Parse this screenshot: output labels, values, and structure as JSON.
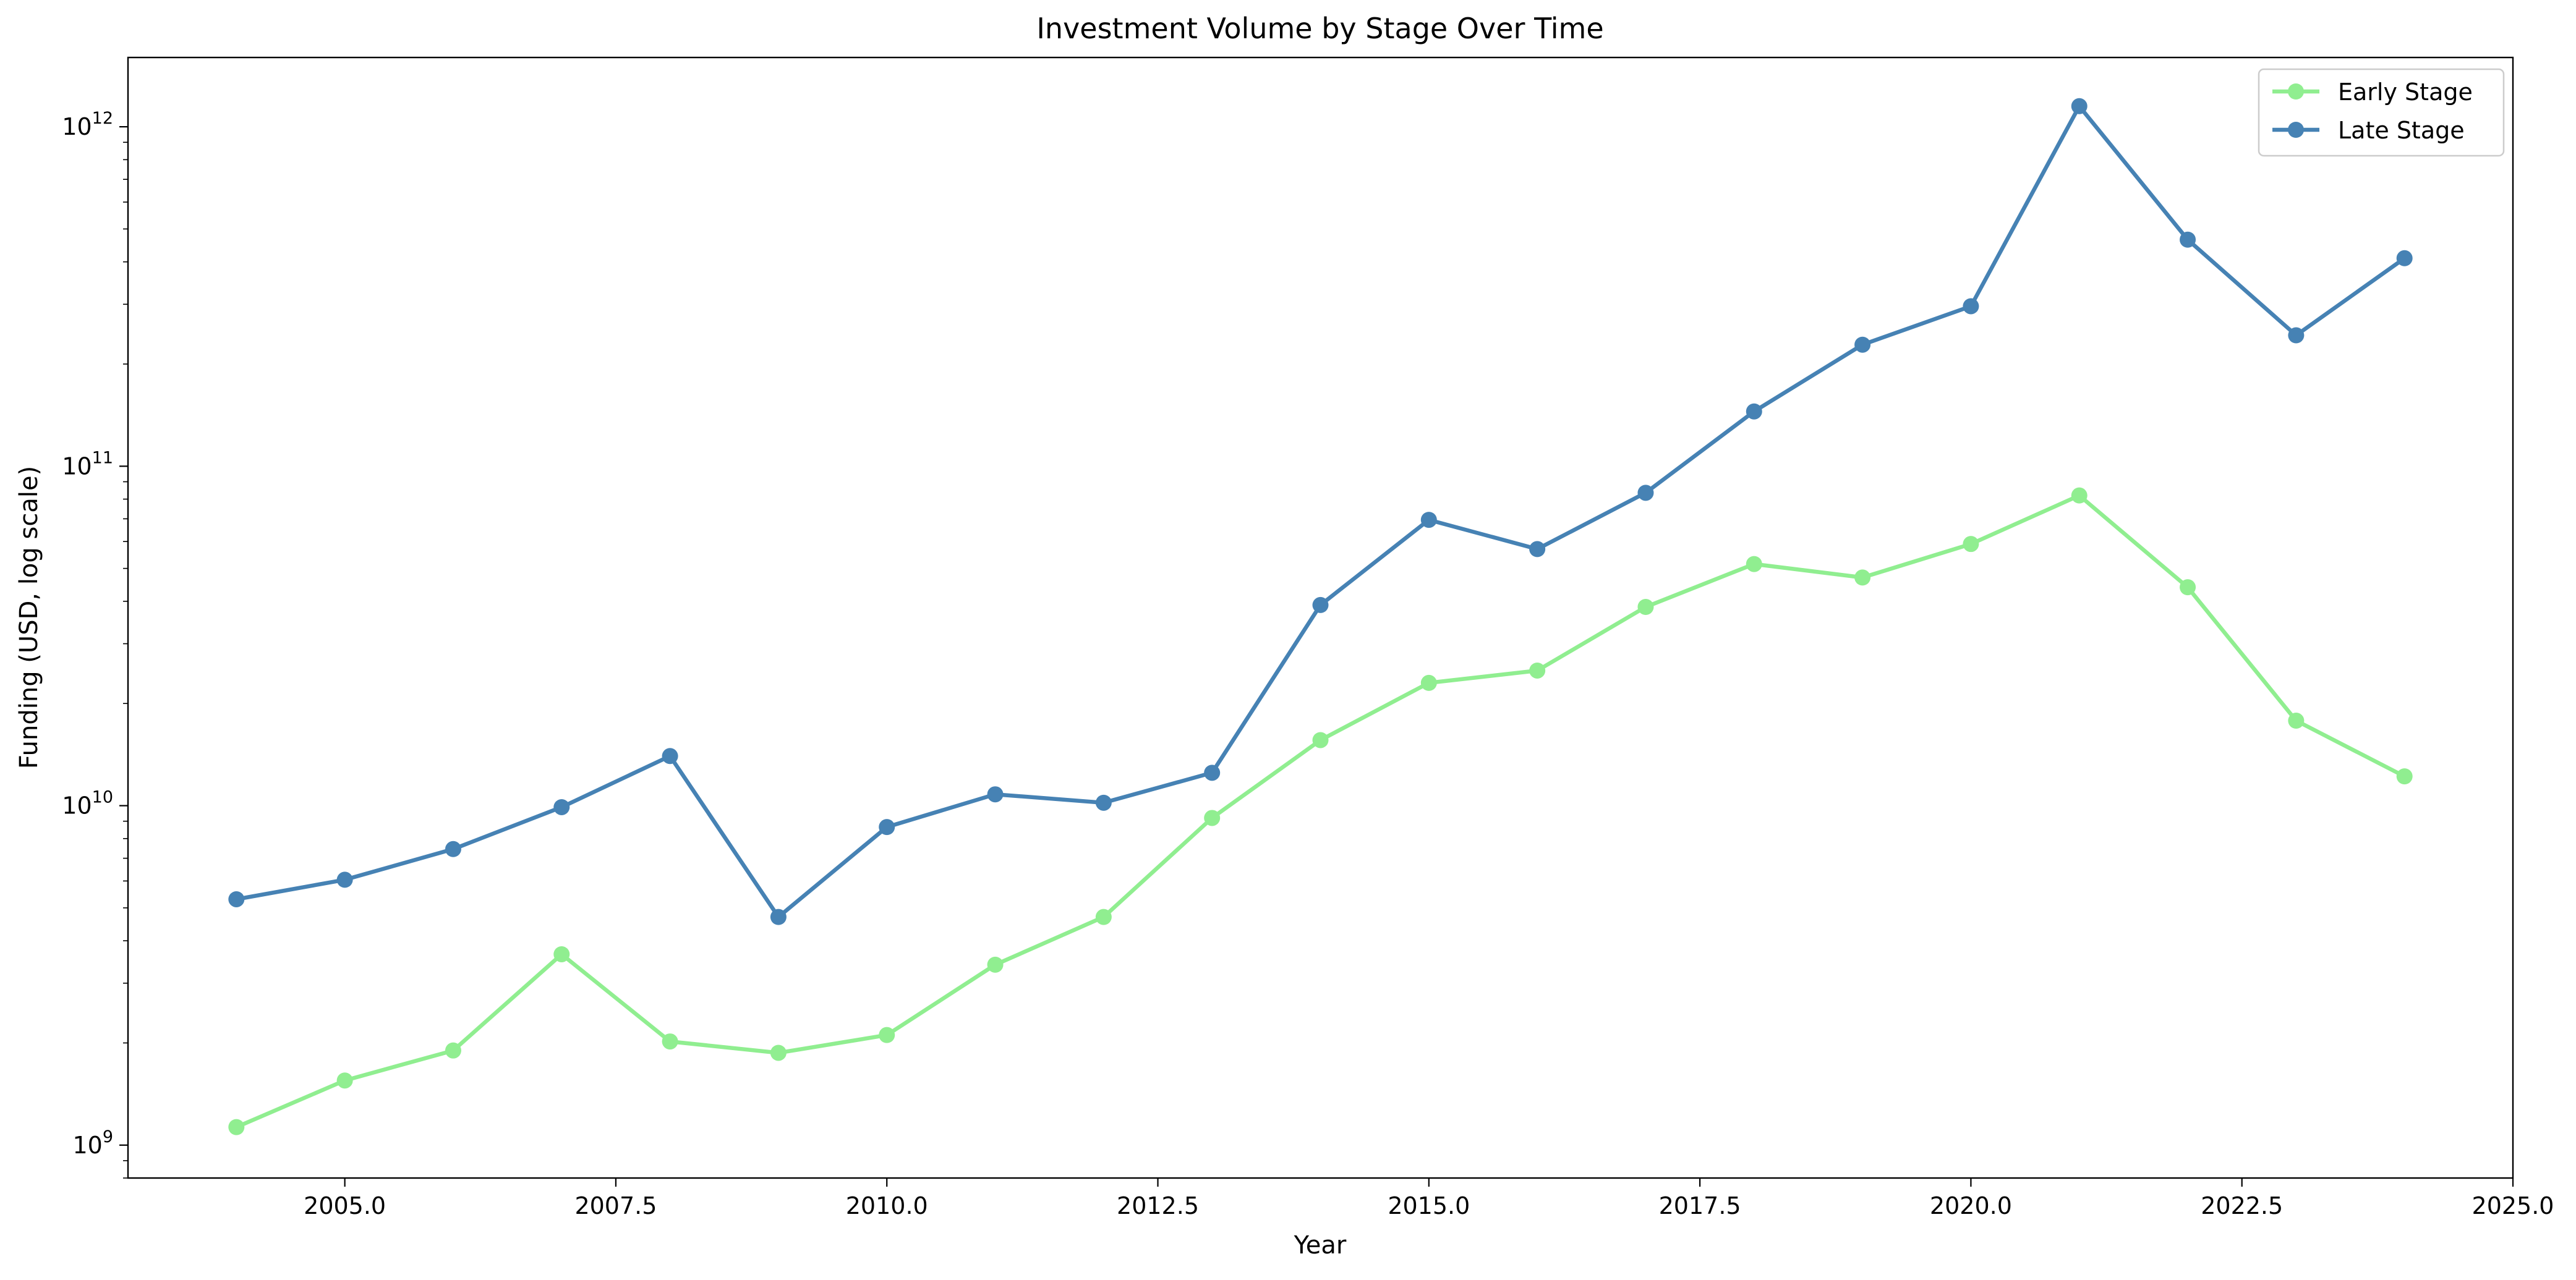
{
  "chart_data": {
    "type": "line",
    "title": "Investment Volume by Stage Over Time",
    "xlabel": "Year",
    "ylabel": "Funding (USD, log scale)",
    "yscale": "log",
    "xlim": [
      2003.0,
      2025.0
    ],
    "ylim": [
      800000000,
      1600000000000
    ],
    "x_ticks": [
      2005.0,
      2007.5,
      2010.0,
      2012.5,
      2015.0,
      2017.5,
      2020.0,
      2022.5,
      2025.0
    ],
    "x_tick_labels": [
      "2005.0",
      "2007.5",
      "2010.0",
      "2012.5",
      "2015.0",
      "2017.5",
      "2020.0",
      "2022.5",
      "2025.0"
    ],
    "y_ticks": [
      1000000000,
      10000000000,
      100000000000,
      1000000000000
    ],
    "y_tick_labels": [
      {
        "base": "10",
        "exp": "9"
      },
      {
        "base": "10",
        "exp": "10"
      },
      {
        "base": "10",
        "exp": "11"
      },
      {
        "base": "10",
        "exp": "12"
      }
    ],
    "grid": false,
    "legend": "top-right",
    "x": [
      2004,
      2005,
      2006,
      2007,
      2008,
      2009,
      2010,
      2011,
      2012,
      2013,
      2014,
      2015,
      2016,
      2017,
      2018,
      2019,
      2020,
      2021,
      2022,
      2023,
      2024
    ],
    "series": [
      {
        "name": "Early Stage",
        "color": "#90ee90",
        "marker": "circle",
        "values": [
          1130000000,
          1550000000,
          1900000000,
          3650000000,
          2020000000,
          1870000000,
          2110000000,
          3400000000,
          4700000000,
          9200000000,
          15600000000,
          23000000000,
          25000000000,
          38500000000,
          51500000000,
          47000000000,
          59000000000,
          82000000000,
          44000000000,
          17800000000,
          12200000000
        ]
      },
      {
        "name": "Late Stage",
        "color": "#4682b4",
        "marker": "circle",
        "values": [
          5300000000,
          6050000000,
          7450000000,
          9900000000,
          14000000000,
          4700000000,
          8650000000,
          10800000000,
          10200000000,
          12500000000,
          39000000000,
          69500000000,
          57000000000,
          83500000000,
          145000000000,
          228000000000,
          296000000000,
          1150000000000,
          465000000000,
          243000000000,
          410000000000
        ]
      }
    ]
  }
}
